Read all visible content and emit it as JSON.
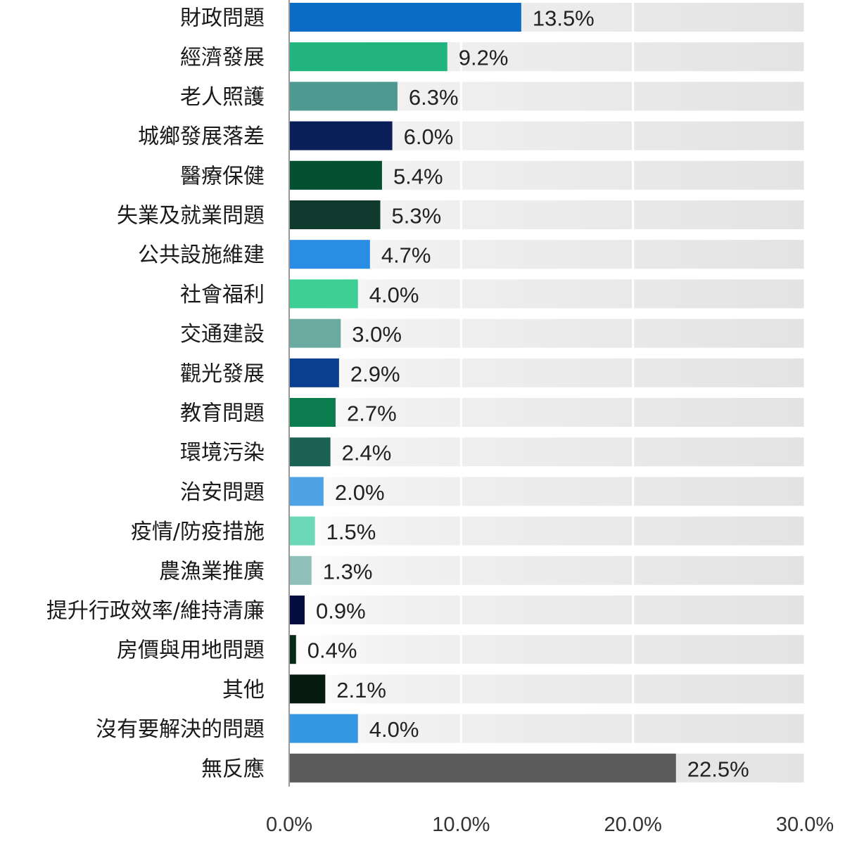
{
  "chart_data": {
    "type": "bar",
    "orientation": "horizontal",
    "categories": [
      "財政問題",
      "經濟發展",
      "老人照護",
      "城鄉發展落差",
      "醫療保健",
      "失業及就業問題",
      "公共設施維建",
      "社會福利",
      "交通建設",
      "觀光發展",
      "教育問題",
      "環境污染",
      "治安問題",
      "疫情/防疫措施",
      "農漁業推廣",
      "提升行政效率/維持清廉",
      "房價與用地問題",
      "其他",
      "沒有要解決的問題",
      "無反應"
    ],
    "values": [
      13.5,
      9.2,
      6.3,
      6.0,
      5.4,
      5.3,
      4.7,
      4.0,
      3.0,
      2.9,
      2.7,
      2.4,
      2.0,
      1.5,
      1.3,
      0.9,
      0.4,
      2.1,
      4.0,
      22.5
    ],
    "value_labels": [
      "13.5%",
      "9.2%",
      "6.3%",
      "6.0%",
      "5.4%",
      "5.3%",
      "4.7%",
      "4.0%",
      "3.0%",
      "2.9%",
      "2.7%",
      "2.4%",
      "2.0%",
      "1.5%",
      "1.3%",
      "0.9%",
      "0.4%",
      "2.1%",
      "4.0%",
      "22.5%"
    ],
    "colors": [
      "#0a6cc4",
      "#22b47e",
      "#4f9a90",
      "#0a1f57",
      "#065032",
      "#0f3a2d",
      "#2a8de4",
      "#3dcf93",
      "#6aaaa0",
      "#0a3e8e",
      "#0a7c4e",
      "#1b6154",
      "#4ea3e7",
      "#6dd8b5",
      "#8fc1ba",
      "#050c40",
      "#062a18",
      "#061a12",
      "#3497e2",
      "#5a5a5a"
    ],
    "xlim": [
      0,
      30
    ],
    "xticks": [
      0,
      10,
      20,
      30
    ],
    "xtick_labels": [
      "0.0%",
      "10.0%",
      "20.0%",
      "30.0%"
    ],
    "grid": true,
    "title": "",
    "xlabel": "",
    "ylabel": ""
  }
}
